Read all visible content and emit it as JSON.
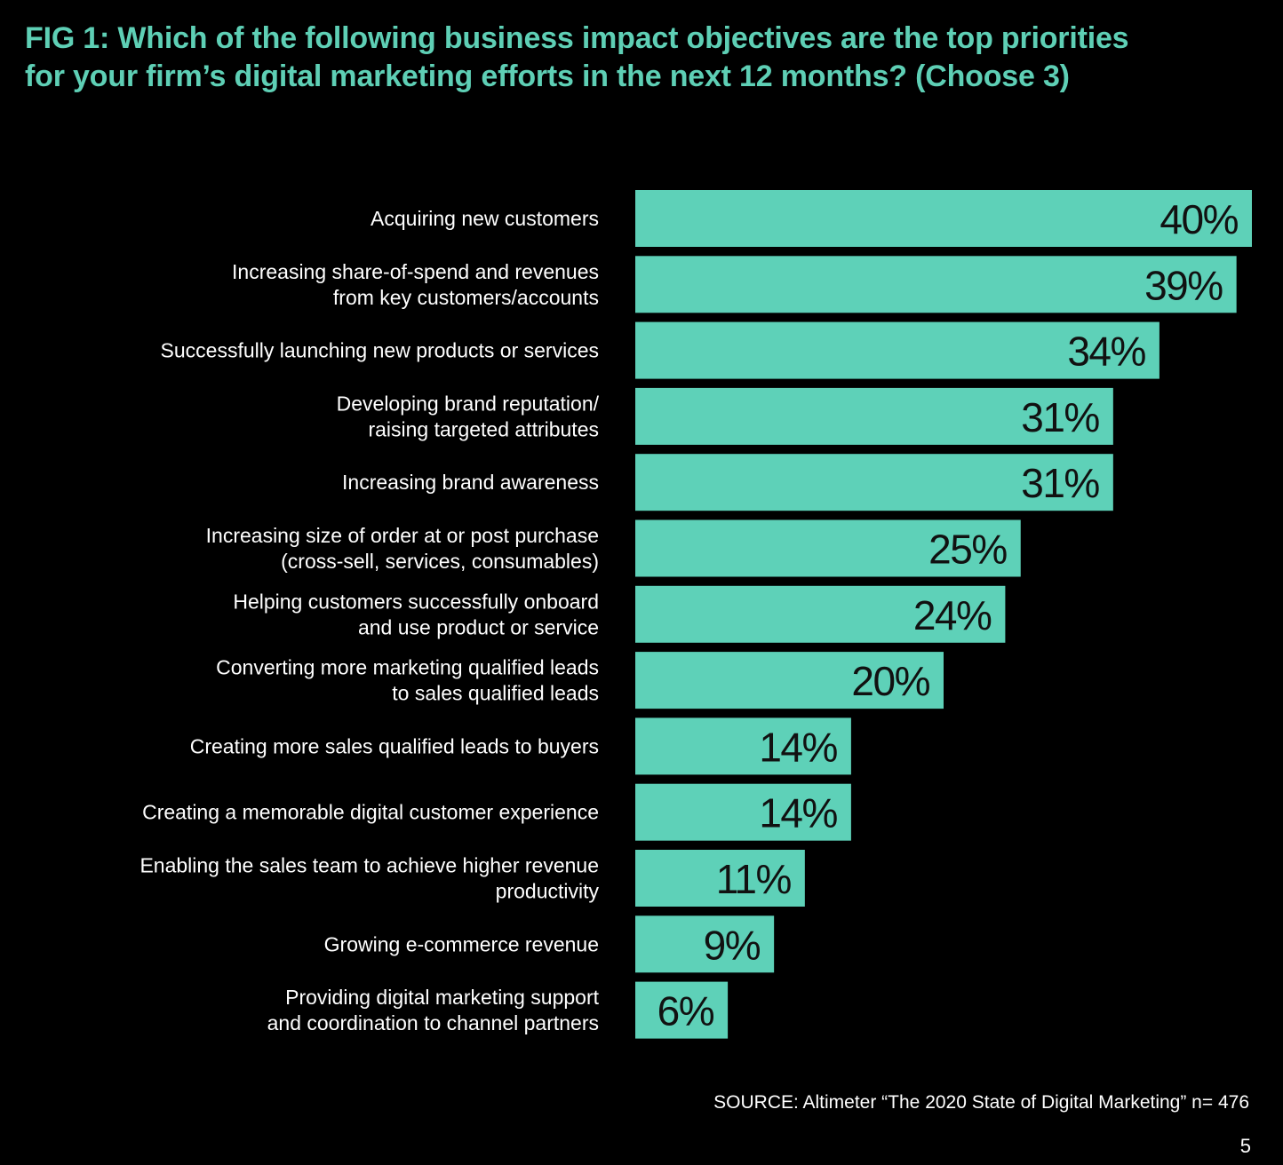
{
  "colors": {
    "background": "#000000",
    "title": "#5ecfb5",
    "bar": "#5ed1b8",
    "label_text": "#ffffff",
    "value_text": "#111111"
  },
  "title_lines": [
    "FIG 1: Which of the following business impact objectives are the top priorities",
    "for your firm’s digital marketing efforts in the next 12 months? (Choose 3)"
  ],
  "source": "SOURCE: Altimeter “The 2020 State of Digital Marketing” n= 476",
  "page_number": "5",
  "chart_data": {
    "type": "bar",
    "orientation": "horizontal",
    "title": "FIG 1: Which of the following business impact objectives are the top priorities for your firm’s digital marketing efforts in the next 12 months? (Choose 3)",
    "categories": [
      [
        "Acquiring new customers"
      ],
      [
        "Increasing share-of-spend and revenues",
        "from key customers/accounts"
      ],
      [
        "Successfully launching new products or services"
      ],
      [
        "Developing brand reputation/",
        "raising targeted attributes"
      ],
      [
        "Increasing brand awareness"
      ],
      [
        "Increasing size of order at or post purchase",
        "(cross-sell, services, consumables)"
      ],
      [
        "Helping customers successfully onboard",
        "and use product or service"
      ],
      [
        "Converting more marketing qualified leads",
        "to sales qualified leads"
      ],
      [
        "Creating more sales qualified leads to buyers"
      ],
      [
        "Creating a memorable digital customer experience"
      ],
      [
        "Enabling the sales team to achieve higher revenue",
        "productivity"
      ],
      [
        "Growing e-commerce revenue"
      ],
      [
        "Providing digital marketing support",
        "and coordination to channel partners"
      ]
    ],
    "values": [
      40,
      39,
      34,
      31,
      31,
      25,
      24,
      20,
      14,
      14,
      11,
      9,
      6
    ],
    "value_labels": [
      "40%",
      "39%",
      "34%",
      "31%",
      "31%",
      "25%",
      "24%",
      "20%",
      "14%",
      "14%",
      "11%",
      "9%",
      "6%"
    ],
    "unit": "%",
    "xlim": [
      0,
      40
    ],
    "grid": false,
    "legend": "none"
  }
}
